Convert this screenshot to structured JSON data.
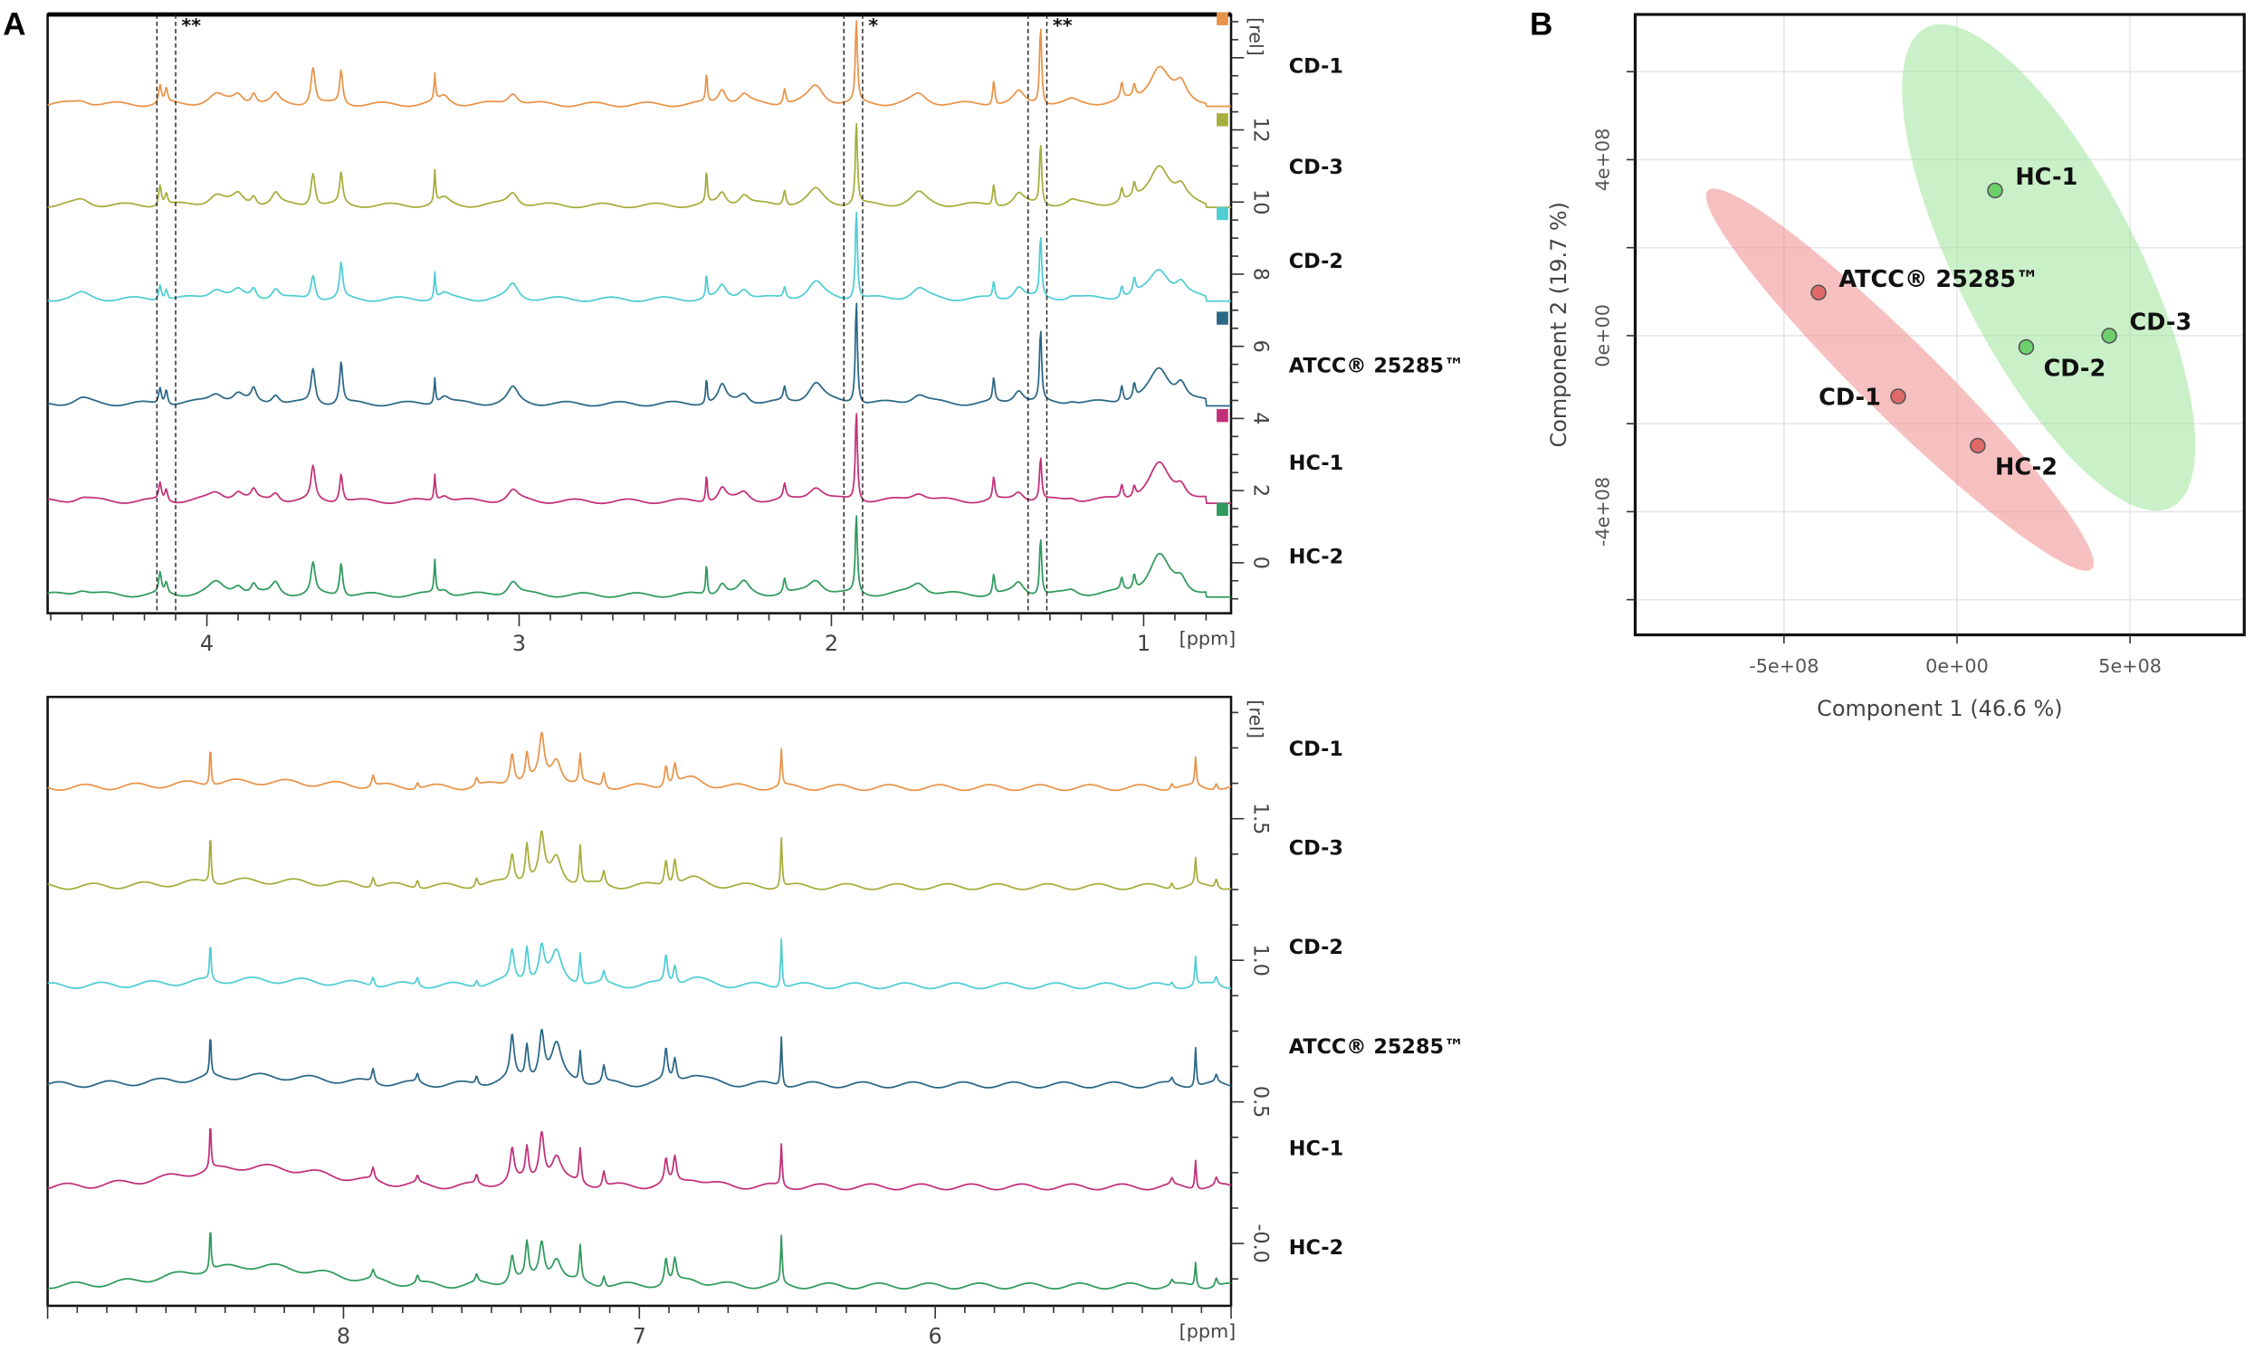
{
  "chart_data": [
    {
      "type": "line",
      "panel_label": "A",
      "xlabel": "[ppm]",
      "ylabel": "[rel]",
      "xlim": [
        4.51,
        0.72
      ],
      "ylim": [
        -1.4,
        15.2
      ],
      "xticks": [
        4,
        3,
        2,
        1
      ],
      "xtick_labels": [
        "4",
        "3",
        "2",
        "1"
      ],
      "yticks": [
        0,
        2,
        4,
        6,
        8,
        10,
        12
      ],
      "ytick_labels": [
        "0",
        "2",
        "4",
        "6",
        "8",
        "10",
        "12"
      ],
      "markers": [
        {
          "ppm": [
            4.16,
            4.1
          ],
          "label": "**"
        },
        {
          "ppm": [
            1.96,
            1.9
          ],
          "label": "*"
        },
        {
          "ppm": [
            1.37,
            1.31
          ],
          "label": "**"
        }
      ],
      "series": [
        {
          "name": "CD-1",
          "color": "#e8944a",
          "offset": 12.7,
          "scale": 1.0,
          "big": [
            2.3,
            2.2
          ]
        },
        {
          "name": "CD-3",
          "color": "#a6ad3c",
          "offset": 9.9,
          "scale": 1.0,
          "big": [
            2.3,
            1.7
          ]
        },
        {
          "name": "CD-2",
          "color": "#4fcdd4",
          "offset": 7.3,
          "scale": 0.9,
          "big": [
            2.5,
            1.7
          ]
        },
        {
          "name": "ATCC® 25285™",
          "color": "#2b6786",
          "offset": 4.4,
          "scale": 1.05,
          "big": [
            2.9,
            2.0
          ]
        },
        {
          "name": "HC-1",
          "color": "#c2307a",
          "offset": 1.7,
          "scale": 0.9,
          "big": [
            2.5,
            1.2
          ]
        },
        {
          "name": "HC-2",
          "color": "#2f9a5c",
          "offset": -0.9,
          "scale": 1.0,
          "big": [
            2.2,
            1.6
          ]
        }
      ],
      "peaks": [
        [
          4.15,
          0.5,
          0.005
        ],
        [
          4.13,
          0.35,
          0.005
        ],
        [
          3.97,
          0.3,
          0.03
        ],
        [
          3.9,
          0.25,
          0.02
        ],
        [
          3.85,
          0.3,
          0.01
        ],
        [
          3.78,
          0.3,
          0.015
        ],
        [
          3.66,
          0.9,
          0.008
        ],
        [
          3.57,
          1.0,
          0.006
        ],
        [
          3.27,
          0.8,
          0.003
        ],
        [
          3.24,
          0.2,
          0.02
        ],
        [
          3.02,
          0.4,
          0.02
        ],
        [
          2.4,
          0.8,
          0.003
        ],
        [
          2.35,
          0.4,
          0.015
        ],
        [
          2.28,
          0.3,
          0.02
        ],
        [
          2.15,
          0.4,
          0.005
        ],
        [
          2.05,
          0.5,
          0.03
        ],
        [
          1.72,
          0.3,
          0.03
        ],
        [
          1.48,
          0.6,
          0.004
        ],
        [
          1.4,
          0.35,
          0.02
        ],
        [
          1.23,
          0.1,
          0.02
        ],
        [
          1.07,
          0.4,
          0.005
        ],
        [
          1.03,
          0.4,
          0.005
        ],
        [
          0.95,
          1.0,
          0.04
        ],
        [
          0.88,
          0.4,
          0.02
        ],
        [
          4.4,
          0.15,
          0.03
        ]
      ],
      "big_peaks_ppm": [
        1.92,
        1.33
      ]
    },
    {
      "type": "line",
      "xlabel": "[ppm]",
      "ylabel": "[rel]",
      "xlim": [
        9.0,
        5.0
      ],
      "ylim": [
        -0.22,
        1.93
      ],
      "xticks": [
        8,
        7,
        6
      ],
      "xtick_labels": [
        "8",
        "7",
        "6"
      ],
      "yticks": [
        0.0,
        0.5,
        1.0,
        1.5
      ],
      "ytick_labels": [
        "-0.0",
        "0.5",
        "1.0",
        "1.5"
      ],
      "series": [
        {
          "name": "CD-1",
          "color": "#e8944a",
          "offset": 1.61,
          "scale": 0.9,
          "hump": 0.02
        },
        {
          "name": "CD-3",
          "color": "#a6ad3c",
          "offset": 1.26,
          "scale": 1.0,
          "hump": 0.02
        },
        {
          "name": "CD-2",
          "color": "#4fcdd4",
          "offset": 0.91,
          "scale": 0.9,
          "hump": 0.02
        },
        {
          "name": "ATCC® 25285™",
          "color": "#2b6786",
          "offset": 0.56,
          "scale": 1.1,
          "hump": 0.03
        },
        {
          "name": "HC-1",
          "color": "#c2307a",
          "offset": 0.2,
          "scale": 1.0,
          "hump": 0.07
        },
        {
          "name": "HC-2",
          "color": "#2f9a5c",
          "offset": -0.15,
          "scale": 0.9,
          "hump": 0.07
        }
      ],
      "peaks": [
        [
          8.45,
          0.16,
          0.003
        ],
        [
          7.9,
          0.04,
          0.005
        ],
        [
          7.75,
          0.03,
          0.005
        ],
        [
          7.55,
          0.03,
          0.005
        ],
        [
          7.43,
          0.12,
          0.008
        ],
        [
          7.38,
          0.12,
          0.006
        ],
        [
          7.33,
          0.15,
          0.01
        ],
        [
          7.28,
          0.1,
          0.02
        ],
        [
          7.2,
          0.12,
          0.004
        ],
        [
          7.12,
          0.05,
          0.005
        ],
        [
          6.91,
          0.1,
          0.006
        ],
        [
          6.88,
          0.08,
          0.006
        ],
        [
          6.82,
          0.03,
          0.05
        ],
        [
          6.52,
          0.17,
          0.003
        ],
        [
          5.2,
          0.02,
          0.005
        ],
        [
          5.12,
          0.11,
          0.003
        ],
        [
          5.05,
          0.03,
          0.005
        ]
      ]
    },
    {
      "type": "scatter",
      "panel_label": "B",
      "xlabel": "Component 1 (46.6 %)",
      "ylabel": "Component 2 (19.7 %)",
      "xlim": [
        -930000000.0,
        830000000.0
      ],
      "ylim": [
        -680000000.0,
        730000000.0
      ],
      "xticks": [
        -500000000.0,
        0,
        500000000.0
      ],
      "xtick_labels": [
        "-5e+08",
        "0e+00",
        "5e+08"
      ],
      "yticks": [
        -400000000.0,
        0,
        400000000.0
      ],
      "ytick_labels": [
        "-4e+08",
        "0e+00",
        "4e+08"
      ],
      "ygrid": [
        -600000000.0,
        -400000000.0,
        -200000000.0,
        0,
        200000000.0,
        400000000.0,
        600000000.0
      ],
      "grid": true,
      "groups": [
        {
          "color": "#f08c8c",
          "point_color": "#e06a6a",
          "ellipse": {
            "from": [
              -720000000.0,
              330000000.0
            ],
            "to": [
              390000000.0,
              -530000000.0
            ],
            "minor": 110000000.0
          }
        },
        {
          "color": "#9ee39a",
          "point_color": "#6ccf6a",
          "ellipse": {
            "from": [
              -90000000.0,
              700000000.0
            ],
            "to": [
              620000000.0,
              -390000000.0
            ],
            "minor": 260000000.0
          }
        }
      ],
      "points": [
        {
          "label": "HC-1",
          "x": 110000000.0,
          "y": 330000000.0,
          "group": 1,
          "anchor": "right-up"
        },
        {
          "label": "ATCC® 25285™",
          "x": -400000000.0,
          "y": 98000000.0,
          "group": 0,
          "anchor": "right-up"
        },
        {
          "label": "CD-3",
          "x": 440000000.0,
          "y": 0.0,
          "group": 1,
          "anchor": "right-up"
        },
        {
          "label": "CD-2",
          "x": 200000000.0,
          "y": -26000000.0,
          "group": 1,
          "anchor": "right-down"
        },
        {
          "label": "CD-1",
          "x": -170000000.0,
          "y": -138000000.0,
          "group": 0,
          "anchor": "left"
        },
        {
          "label": "HC-2",
          "x": 60000000.0,
          "y": -250000000.0,
          "group": 0,
          "anchor": "right-down"
        }
      ]
    }
  ]
}
